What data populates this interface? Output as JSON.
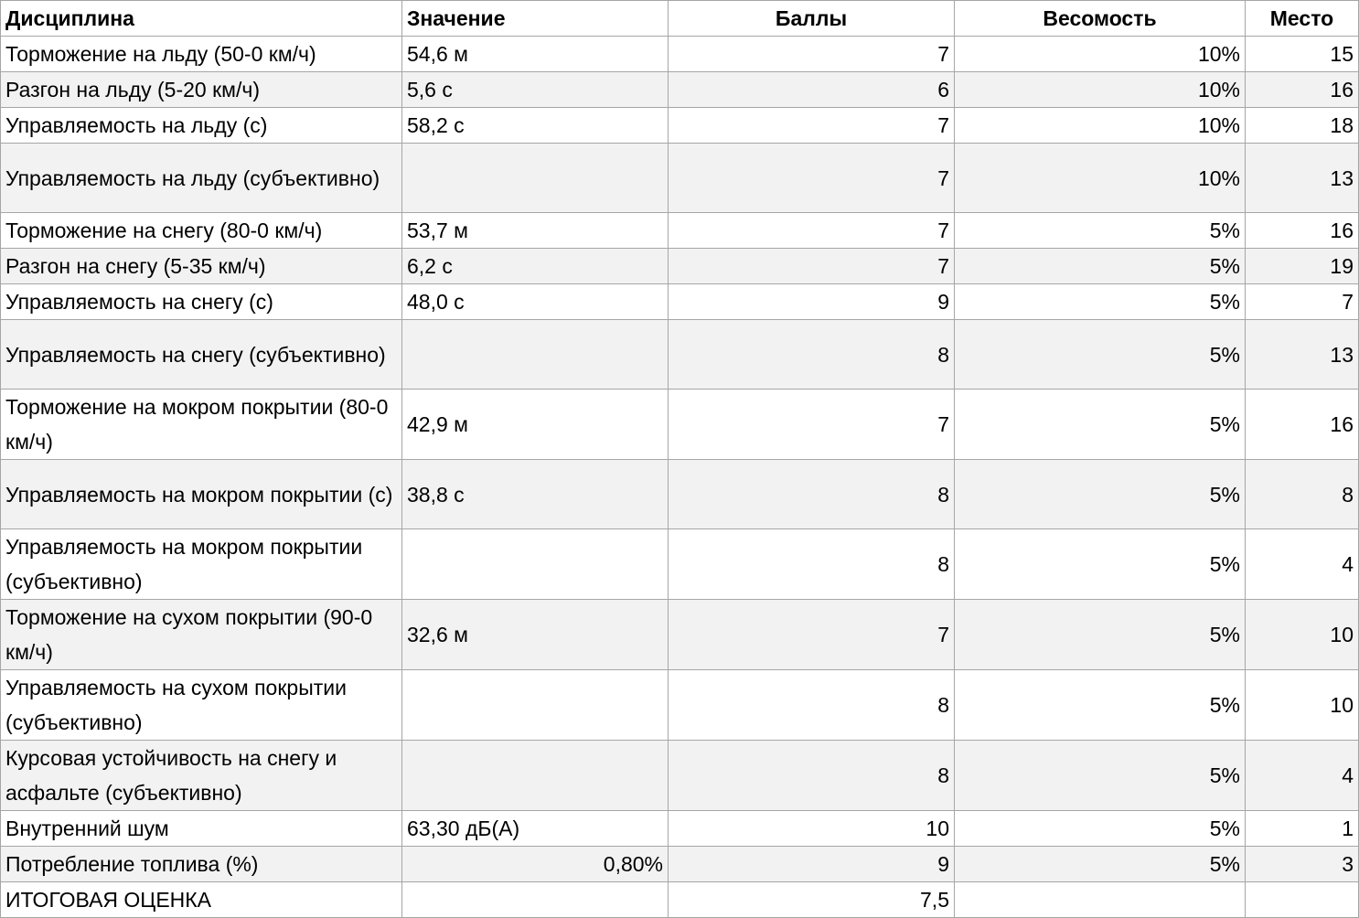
{
  "table": {
    "headers": {
      "discipline": "Дисциплина",
      "value": "Значение",
      "points": "Баллы",
      "weight": "Весомость",
      "place": "Место"
    },
    "rows": [
      {
        "discipline": "Торможение на льду (50-0 км/ч)",
        "value": "54,6 м",
        "points": "7",
        "weight": "10%",
        "place": "15"
      },
      {
        "discipline": "Разгон на льду (5-20 км/ч)",
        "value": "5,6 с",
        "points": "6",
        "weight": "10%",
        "place": "16"
      },
      {
        "discipline": "Управляемость на льду (с)",
        "value": "58,2 с",
        "points": "7",
        "weight": "10%",
        "place": "18"
      },
      {
        "discipline": "Управляемость на льду (субъективно)",
        "value": "",
        "points": "7",
        "weight": "10%",
        "place": "13"
      },
      {
        "discipline": "Торможение на снегу (80-0 км/ч)",
        "value": "53,7 м",
        "points": "7",
        "weight": "5%",
        "place": "16"
      },
      {
        "discipline": "Разгон на снегу (5-35 км/ч)",
        "value": "6,2 с",
        "points": "7",
        "weight": "5%",
        "place": "19"
      },
      {
        "discipline": "Управляемость на снегу (с)",
        "value": "48,0 с",
        "points": "9",
        "weight": "5%",
        "place": "7"
      },
      {
        "discipline": "Управляемость на снегу (субъективно)",
        "value": "",
        "points": "8",
        "weight": "5%",
        "place": "13"
      },
      {
        "discipline": "Торможение на мокром покрытии (80-0 км/ч)",
        "value": "42,9 м",
        "points": "7",
        "weight": "5%",
        "place": "16"
      },
      {
        "discipline": "Управляемость на мокром покрытии (с)",
        "value": "38,8 с",
        "points": "8",
        "weight": "5%",
        "place": "8"
      },
      {
        "discipline": "Управляемость на мокром покрытии (субъективно)",
        "value": "",
        "points": "8",
        "weight": "5%",
        "place": "4"
      },
      {
        "discipline": "Торможение на сухом покрытии (90-0 км/ч)",
        "value": "32,6 м",
        "points": "7",
        "weight": "5%",
        "place": "10"
      },
      {
        "discipline": "Управляемость на сухом покрытии (субъективно)",
        "value": "",
        "points": "8",
        "weight": "5%",
        "place": "10"
      },
      {
        "discipline": "Курсовая устойчивость на снегу и асфальте (субъективно)",
        "value": "",
        "points": "8",
        "weight": "5%",
        "place": "4"
      },
      {
        "discipline": "Внутренний шум",
        "value": "63,30 дБ(А)",
        "points": "10",
        "weight": "5%",
        "place": "1"
      },
      {
        "discipline": "Потребление топлива (%)",
        "value": "0,80%",
        "points": "9",
        "weight": "5%",
        "place": "3"
      },
      {
        "discipline": "ИТОГОВАЯ ОЦЕНКА",
        "value": "",
        "points": "7,5",
        "weight": "",
        "place": ""
      }
    ]
  }
}
